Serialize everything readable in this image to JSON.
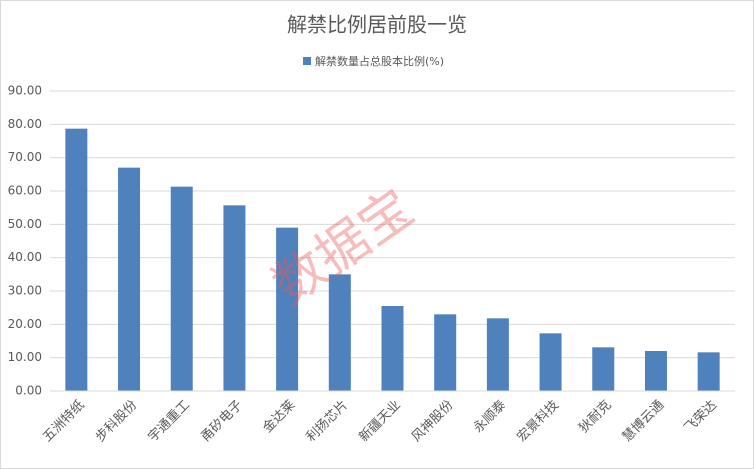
{
  "chart_data": {
    "type": "bar",
    "title": "解禁比例居前股一览",
    "watermark": "数据宝",
    "categories": [
      "五洲特纸",
      "步科股份",
      "宇通重工",
      "甬矽电子",
      "金达莱",
      "利扬芯片",
      "新疆天业",
      "风神股份",
      "永顺泰",
      "宏景科技",
      "狄耐克",
      "慧博云通",
      "飞荣达"
    ],
    "series": [
      {
        "name": "解禁数量占总股本比例(%)",
        "color": "#4f81bd",
        "values": [
          78.7,
          67.0,
          61.3,
          55.7,
          49.0,
          35.0,
          25.5,
          23.0,
          21.8,
          17.3,
          13.1,
          12.0,
          11.6
        ]
      }
    ],
    "ylim": [
      0,
      90
    ],
    "yticks": [
      {
        "value": 0,
        "label": "0.00"
      },
      {
        "value": 10,
        "label": "10.00"
      },
      {
        "value": 20,
        "label": "20.00"
      },
      {
        "value": 30,
        "label": "30.00"
      },
      {
        "value": 40,
        "label": "40.00"
      },
      {
        "value": 50,
        "label": "50.00"
      },
      {
        "value": 60,
        "label": "60.00"
      },
      {
        "value": 70,
        "label": "70.00"
      },
      {
        "value": 80,
        "label": "80.00"
      },
      {
        "value": 90,
        "label": "90.00"
      }
    ],
    "grid": true,
    "legend": "top"
  }
}
